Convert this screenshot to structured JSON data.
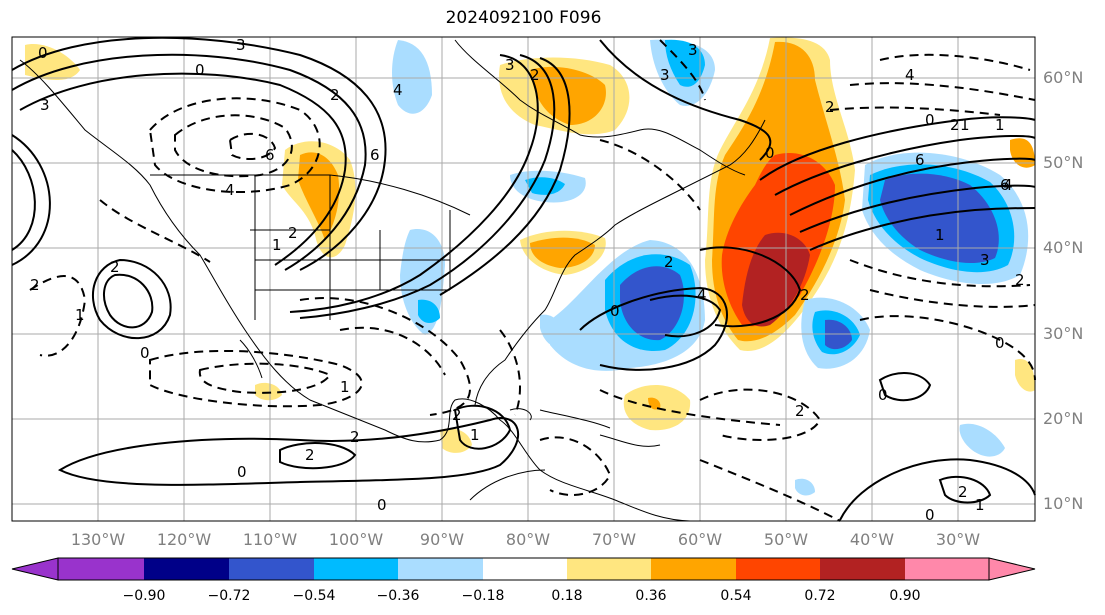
{
  "title": "2024092100 F096",
  "longitude_ticks": [
    "130°W",
    "120°W",
    "110°W",
    "100°W",
    "90°W",
    "80°W",
    "70°W",
    "60°W",
    "50°W",
    "40°W",
    "30°W"
  ],
  "latitude_ticks": [
    "60°N",
    "50°N",
    "40°N",
    "30°N",
    "20°N",
    "10°N"
  ],
  "colorbar": {
    "labels": [
      "−0.90",
      "−0.72",
      "−0.54",
      "−0.36",
      "−0.18",
      "0.18",
      "0.36",
      "0.54",
      "0.72",
      "0.90"
    ],
    "colors": [
      "#9933cc",
      "#000088",
      "#3355cc",
      "#00bbff",
      "#aaddff",
      "#ffffff",
      "#ffe680",
      "#ffa500",
      "#ff4500",
      "#b22222",
      "#ff88aa"
    ]
  },
  "contour_labels": [
    "3",
    "0",
    "0",
    "3",
    "3",
    "4",
    "6",
    "6",
    "6",
    "4",
    "2",
    "2",
    "1",
    "2",
    "1",
    "0",
    "1",
    "2",
    "2",
    "0",
    "0",
    "1",
    "2",
    "2",
    "3",
    "4",
    "2",
    "3",
    "0",
    "2",
    "4",
    "2",
    "0",
    "6",
    "4",
    "1",
    "3",
    "2",
    "0",
    "0",
    "2",
    "1",
    "0",
    "2",
    "0",
    "1",
    "2",
    "1",
    "2"
  ]
}
